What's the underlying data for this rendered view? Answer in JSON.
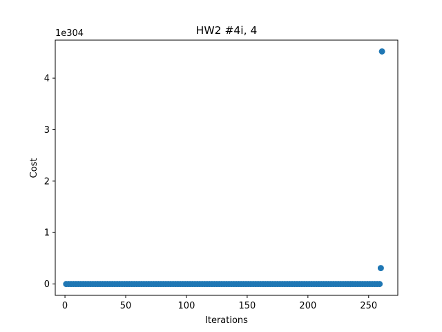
{
  "chart_data": {
    "type": "scatter",
    "title": "HW2 #4i, 4",
    "xlabel": "Iterations",
    "ylabel": "Cost",
    "y_offset_label": "1e304",
    "xlim": [
      -8,
      274
    ],
    "ylim": [
      -0.22,
      4.74
    ],
    "x_ticks": [
      0,
      50,
      100,
      150,
      200,
      250
    ],
    "y_ticks": [
      0,
      1,
      2,
      3,
      4
    ],
    "grid": false,
    "legend": "none",
    "marker_color": "#1f77b4",
    "series": [
      {
        "points": [
          [
            1,
            0
          ],
          [
            3,
            0
          ],
          [
            5,
            0
          ],
          [
            7,
            0
          ],
          [
            9,
            0
          ],
          [
            11,
            0
          ],
          [
            13,
            0
          ],
          [
            15,
            0
          ],
          [
            17,
            0
          ],
          [
            19,
            0
          ],
          [
            21,
            0
          ],
          [
            23,
            0
          ],
          [
            25,
            0
          ],
          [
            27,
            0
          ],
          [
            29,
            0
          ],
          [
            31,
            0
          ],
          [
            33,
            0
          ],
          [
            35,
            0
          ],
          [
            37,
            0
          ],
          [
            39,
            0
          ],
          [
            41,
            0
          ],
          [
            43,
            0
          ],
          [
            45,
            0
          ],
          [
            47,
            0
          ],
          [
            49,
            0
          ],
          [
            51,
            0
          ],
          [
            53,
            0
          ],
          [
            55,
            0
          ],
          [
            57,
            0
          ],
          [
            59,
            0
          ],
          [
            61,
            0
          ],
          [
            63,
            0
          ],
          [
            65,
            0
          ],
          [
            67,
            0
          ],
          [
            69,
            0
          ],
          [
            71,
            0
          ],
          [
            73,
            0
          ],
          [
            75,
            0
          ],
          [
            77,
            0
          ],
          [
            79,
            0
          ],
          [
            81,
            0
          ],
          [
            83,
            0
          ],
          [
            85,
            0
          ],
          [
            87,
            0
          ],
          [
            89,
            0
          ],
          [
            91,
            0
          ],
          [
            93,
            0
          ],
          [
            95,
            0
          ],
          [
            97,
            0
          ],
          [
            99,
            0
          ],
          [
            101,
            0
          ],
          [
            103,
            0
          ],
          [
            105,
            0
          ],
          [
            107,
            0
          ],
          [
            109,
            0
          ],
          [
            111,
            0
          ],
          [
            113,
            0
          ],
          [
            115,
            0
          ],
          [
            117,
            0
          ],
          [
            119,
            0
          ],
          [
            121,
            0
          ],
          [
            123,
            0
          ],
          [
            125,
            0
          ],
          [
            127,
            0
          ],
          [
            129,
            0
          ],
          [
            131,
            0
          ],
          [
            133,
            0
          ],
          [
            135,
            0
          ],
          [
            137,
            0
          ],
          [
            139,
            0
          ],
          [
            141,
            0
          ],
          [
            143,
            0
          ],
          [
            145,
            0
          ],
          [
            147,
            0
          ],
          [
            149,
            0
          ],
          [
            151,
            0
          ],
          [
            153,
            0
          ],
          [
            155,
            0
          ],
          [
            157,
            0
          ],
          [
            159,
            0
          ],
          [
            161,
            0
          ],
          [
            163,
            0
          ],
          [
            165,
            0
          ],
          [
            167,
            0
          ],
          [
            169,
            0
          ],
          [
            171,
            0
          ],
          [
            173,
            0
          ],
          [
            175,
            0
          ],
          [
            177,
            0
          ],
          [
            179,
            0
          ],
          [
            181,
            0
          ],
          [
            183,
            0
          ],
          [
            185,
            0
          ],
          [
            187,
            0
          ],
          [
            189,
            0
          ],
          [
            191,
            0
          ],
          [
            193,
            0
          ],
          [
            195,
            0
          ],
          [
            197,
            0
          ],
          [
            199,
            0
          ],
          [
            201,
            0
          ],
          [
            203,
            0
          ],
          [
            205,
            0
          ],
          [
            207,
            0
          ],
          [
            209,
            0
          ],
          [
            211,
            0
          ],
          [
            213,
            0
          ],
          [
            215,
            0
          ],
          [
            217,
            0
          ],
          [
            219,
            0
          ],
          [
            221,
            0
          ],
          [
            223,
            0
          ],
          [
            225,
            0
          ],
          [
            227,
            0
          ],
          [
            229,
            0
          ],
          [
            231,
            0
          ],
          [
            233,
            0
          ],
          [
            235,
            0
          ],
          [
            237,
            0
          ],
          [
            239,
            0
          ],
          [
            241,
            0
          ],
          [
            243,
            0
          ],
          [
            245,
            0
          ],
          [
            247,
            0
          ],
          [
            249,
            0
          ],
          [
            251,
            0
          ],
          [
            253,
            0
          ],
          [
            255,
            0
          ],
          [
            257,
            0
          ],
          [
            259,
            0
          ],
          [
            260,
            0.31
          ],
          [
            261,
            4.52
          ]
        ]
      }
    ]
  }
}
